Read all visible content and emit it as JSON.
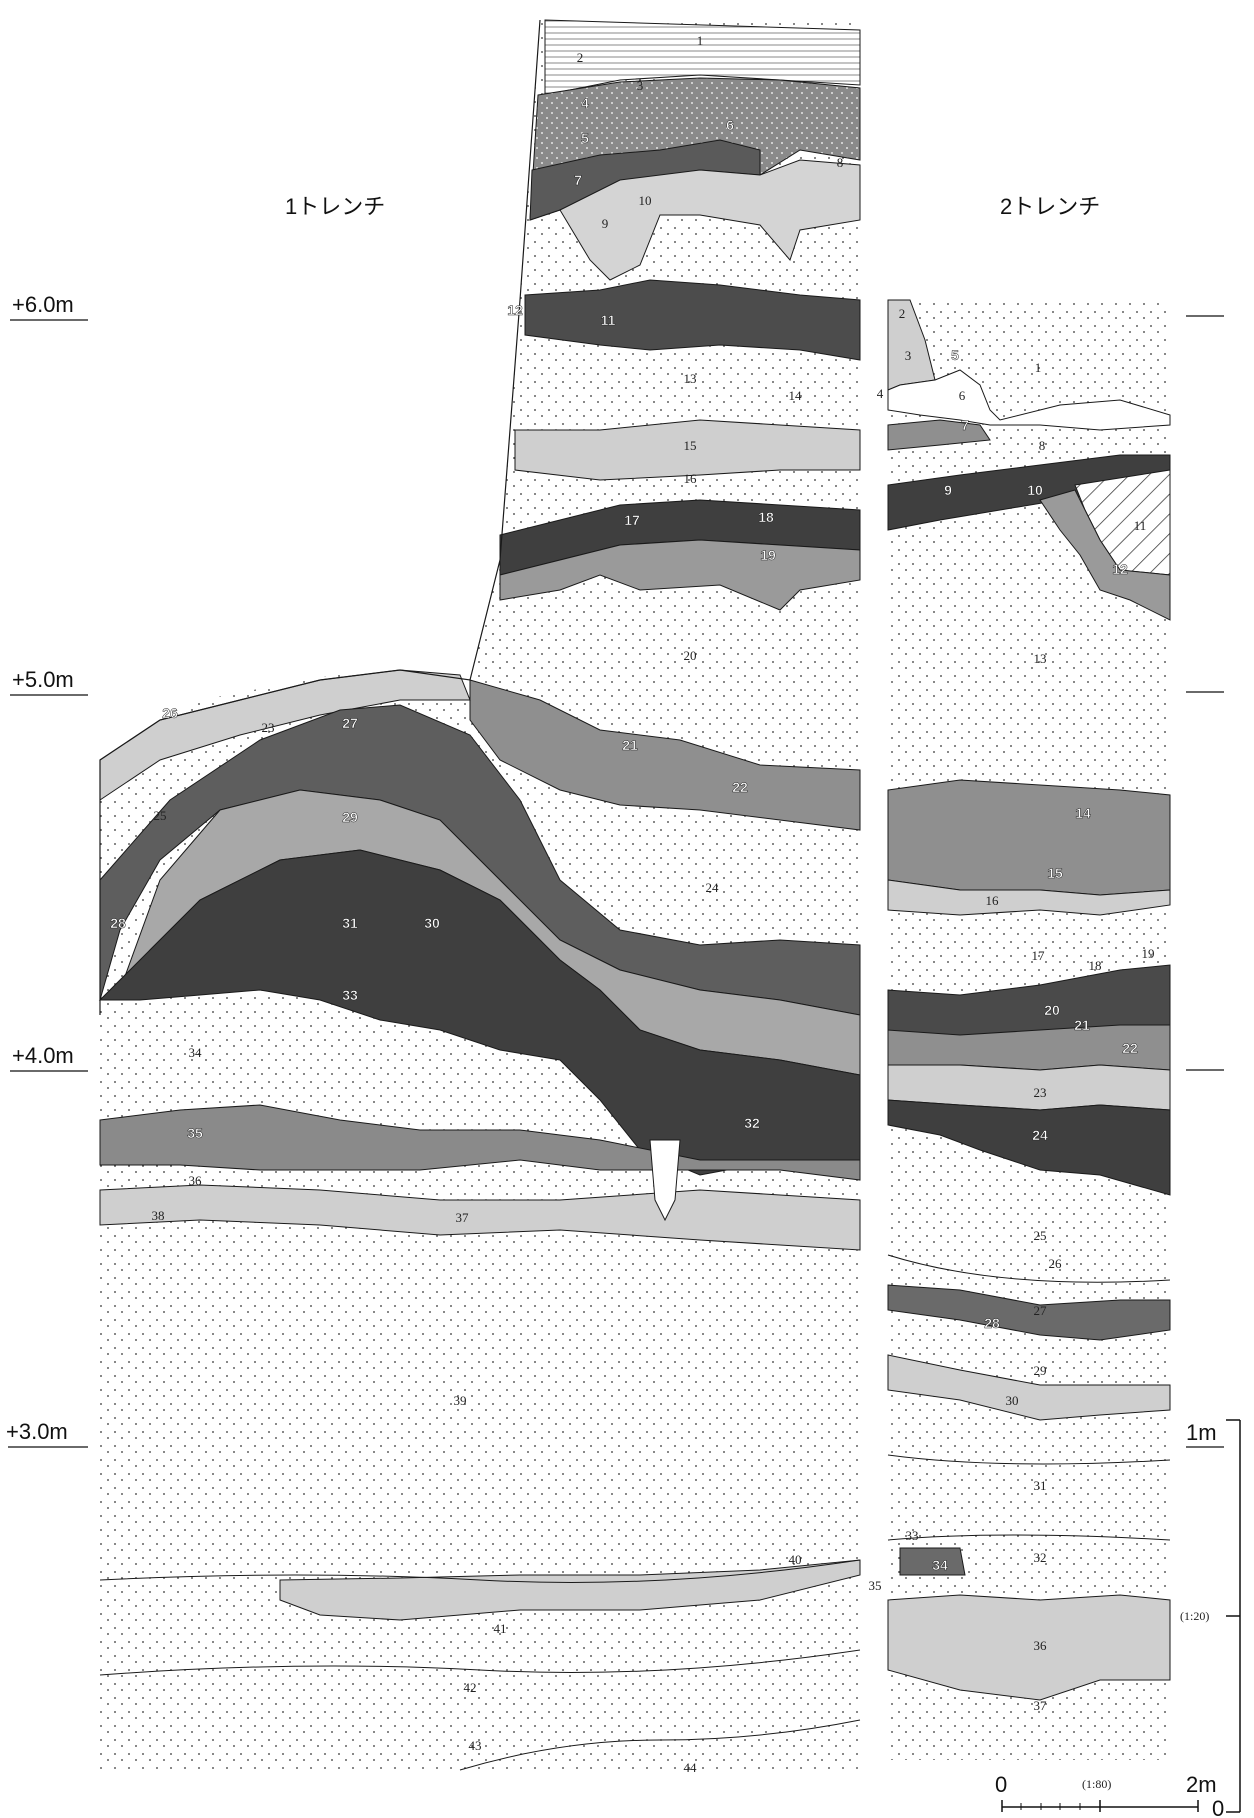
{
  "trench1": {
    "title": "1トレンチ",
    "layers": [
      {
        "n": "1",
        "shade": "hatch"
      },
      {
        "n": "2",
        "shade": "hatch"
      },
      {
        "n": "3",
        "shade": "light"
      },
      {
        "n": "4",
        "shade": "mid"
      },
      {
        "n": "5",
        "shade": "mid"
      },
      {
        "n": "6",
        "shade": "dark"
      },
      {
        "n": "7",
        "shade": "dark"
      },
      {
        "n": "8",
        "shade": "white"
      },
      {
        "n": "9",
        "shade": "light"
      },
      {
        "n": "10",
        "shade": "dots"
      },
      {
        "n": "11",
        "shade": "dark"
      },
      {
        "n": "12",
        "shade": "dark"
      },
      {
        "n": "13",
        "shade": "dots"
      },
      {
        "n": "14",
        "shade": "dots"
      },
      {
        "n": "15",
        "shade": "light"
      },
      {
        "n": "16",
        "shade": "dots"
      },
      {
        "n": "17",
        "shade": "darkest"
      },
      {
        "n": "18",
        "shade": "darkest"
      },
      {
        "n": "19",
        "shade": "mid"
      },
      {
        "n": "20",
        "shade": "dots"
      },
      {
        "n": "21",
        "shade": "mid"
      },
      {
        "n": "22",
        "shade": "mid"
      },
      {
        "n": "23",
        "shade": "light"
      },
      {
        "n": "24",
        "shade": "dots"
      },
      {
        "n": "25",
        "shade": "dots"
      },
      {
        "n": "26",
        "shade": "dark"
      },
      {
        "n": "27",
        "shade": "dark"
      },
      {
        "n": "28",
        "shade": "dark"
      },
      {
        "n": "29",
        "shade": "mid"
      },
      {
        "n": "30",
        "shade": "darkest"
      },
      {
        "n": "31",
        "shade": "darkest"
      },
      {
        "n": "32",
        "shade": "darkest"
      },
      {
        "n": "33",
        "shade": "darkest"
      },
      {
        "n": "34",
        "shade": "dots"
      },
      {
        "n": "35",
        "shade": "mid"
      },
      {
        "n": "36",
        "shade": "dots"
      },
      {
        "n": "37",
        "shade": "light"
      },
      {
        "n": "38",
        "shade": "light"
      },
      {
        "n": "39",
        "shade": "dots"
      },
      {
        "n": "40",
        "shade": "dots"
      },
      {
        "n": "41",
        "shade": "light"
      },
      {
        "n": "42",
        "shade": "dots"
      },
      {
        "n": "43",
        "shade": "dots"
      },
      {
        "n": "44",
        "shade": "dots"
      }
    ]
  },
  "trench2": {
    "title": "2トレンチ",
    "layers": [
      {
        "n": "1",
        "shade": "white"
      },
      {
        "n": "2",
        "shade": "light"
      },
      {
        "n": "3",
        "shade": "light"
      },
      {
        "n": "4",
        "shade": "white"
      },
      {
        "n": "5",
        "shade": "dark"
      },
      {
        "n": "6",
        "shade": "white"
      },
      {
        "n": "7",
        "shade": "mid"
      },
      {
        "n": "8",
        "shade": "white"
      },
      {
        "n": "9",
        "shade": "darkest"
      },
      {
        "n": "10",
        "shade": "darkest"
      },
      {
        "n": "11",
        "shade": "hatch"
      },
      {
        "n": "12",
        "shade": "mid"
      },
      {
        "n": "13",
        "shade": "dots"
      },
      {
        "n": "14",
        "shade": "mid"
      },
      {
        "n": "15",
        "shade": "mid"
      },
      {
        "n": "16",
        "shade": "light"
      },
      {
        "n": "17",
        "shade": "dots"
      },
      {
        "n": "18",
        "shade": "dots"
      },
      {
        "n": "19",
        "shade": "dots"
      },
      {
        "n": "20",
        "shade": "darkest"
      },
      {
        "n": "21",
        "shade": "darkest"
      },
      {
        "n": "22",
        "shade": "mid"
      },
      {
        "n": "23",
        "shade": "light"
      },
      {
        "n": "24",
        "shade": "darkest"
      },
      {
        "n": "25",
        "shade": "dots"
      },
      {
        "n": "26",
        "shade": "dots"
      },
      {
        "n": "27",
        "shade": "dots"
      },
      {
        "n": "28",
        "shade": "dark"
      },
      {
        "n": "29",
        "shade": "dots"
      },
      {
        "n": "30",
        "shade": "light"
      },
      {
        "n": "31",
        "shade": "dots"
      },
      {
        "n": "32",
        "shade": "dots"
      },
      {
        "n": "33",
        "shade": "dots"
      },
      {
        "n": "34",
        "shade": "dark"
      },
      {
        "n": "35",
        "shade": "dots"
      },
      {
        "n": "36",
        "shade": "light"
      },
      {
        "n": "37",
        "shade": "dots"
      }
    ]
  },
  "elevations": [
    "+6.0m",
    "+5.0m",
    "+4.0m",
    "+3.0m"
  ],
  "scale_bar": {
    "zero": "0",
    "mid": "(1:80)",
    "end": "2m"
  },
  "vertical_scale": {
    "top": "1m",
    "mid": "(1:20)",
    "bottom": "0"
  },
  "colors": {
    "white": "#ffffff",
    "light": "#cfcfcf",
    "mid": "#9a9a9a",
    "dark": "#6f6f6f",
    "darkest": "#4a4a4a",
    "line": "#1a1a1a"
  }
}
